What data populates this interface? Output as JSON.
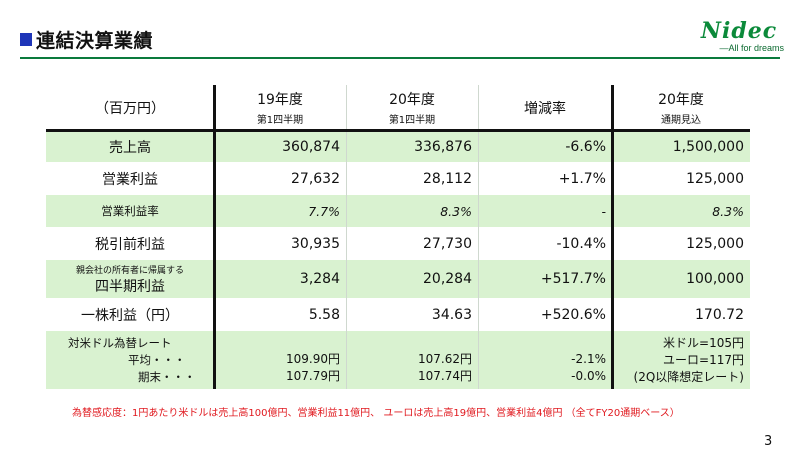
{
  "header": {
    "title": "連結決算業績",
    "logo_text": "Nidec",
    "logo_tagline": "—All for dreams"
  },
  "table": {
    "columns": [
      {
        "main": "（百万円）",
        "sub": ""
      },
      {
        "main": "19年度",
        "sub": "第1四半期"
      },
      {
        "main": "20年度",
        "sub": "第1四半期"
      },
      {
        "main": "増減率",
        "sub": ""
      },
      {
        "main": "20年度",
        "sub": "通期見込"
      }
    ],
    "rows": [
      {
        "label": "売上高",
        "sublabel": "",
        "values": [
          "360,874",
          "336,876",
          "-6.6%",
          "1,500,000"
        ]
      },
      {
        "label": "営業利益",
        "sublabel": "",
        "values": [
          "27,632",
          "28,112",
          "+1.7%",
          "125,000"
        ]
      },
      {
        "label": "営業利益率",
        "sublabel": "",
        "values": [
          "7.7%",
          "8.3%",
          "-",
          "8.3%"
        ]
      },
      {
        "label": "税引前利益",
        "sublabel": "",
        "values": [
          "30,935",
          "27,730",
          "-10.4%",
          "125,000"
        ]
      },
      {
        "label": "四半期利益",
        "sublabel": "親会社の所有者に帰属する",
        "values": [
          "3,284",
          "20,284",
          "+517.7%",
          "100,000"
        ]
      },
      {
        "label": "一株利益（円）",
        "sublabel": "",
        "values": [
          "5.58",
          "34.63",
          "+520.6%",
          "170.72"
        ]
      }
    ],
    "fx": {
      "title": "対米ドル為替レート",
      "avg_label": "平均・・・",
      "end_label": "期末・・・",
      "fy19_avg": "109.90円",
      "fy19_end": "107.79円",
      "fy20_avg": "107.62円",
      "fy20_end": "107.74円",
      "chg_avg": "-2.1%",
      "chg_end": "-0.0%",
      "forecast_line1": "米ドル=105円",
      "forecast_line2": "ユーロ=117円",
      "forecast_line3": "(2Q以降想定レート)"
    }
  },
  "footnote": "為替感応度：1円あたり米ドルは売上高100億円、営業利益11億円、 ユーロは売上高19億円、営業利益4億円 （全てFY20通期ベース）",
  "page_number": "3"
}
